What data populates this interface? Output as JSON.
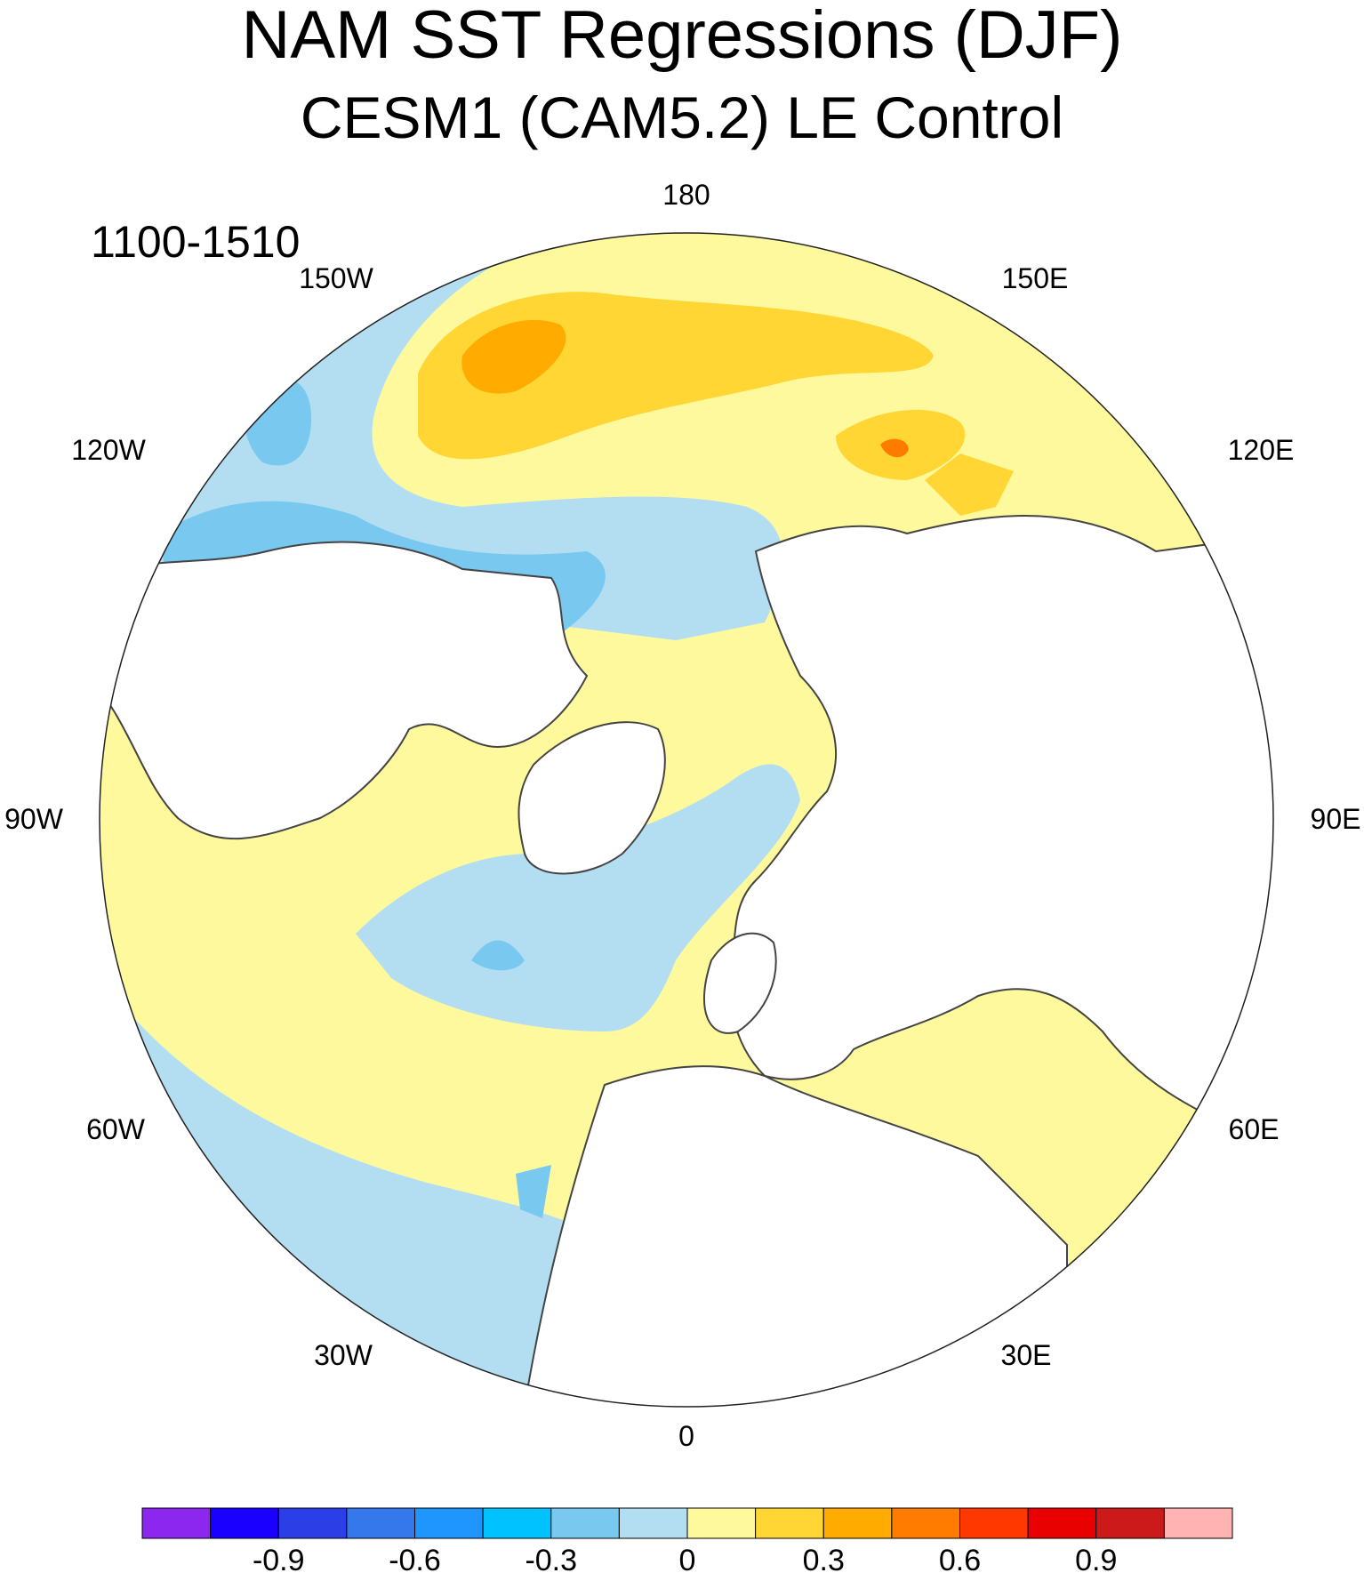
{
  "title": "NAM SST Regressions (DJF)",
  "subtitle": "CESM1 (CAM5.2) LE Control",
  "period": "1100-1510",
  "longitude_labels": {
    "lon_180": "180",
    "lon_150e": "150E",
    "lon_120e": "120E",
    "lon_90e": "90E",
    "lon_60e": "60E",
    "lon_30e": "30E",
    "lon_0": "0",
    "lon_30w": "30W",
    "lon_60w": "60W",
    "lon_90w": "90W",
    "lon_120w": "120W",
    "lon_150w": "150W"
  },
  "colorbar": {
    "colors": [
      "#8c27f0",
      "#1a00ff",
      "#2c3fe6",
      "#3478ec",
      "#1e96fd",
      "#00c2ff",
      "#78c8f0",
      "#b3def2",
      "#fff99e",
      "#ffd634",
      "#ffab00",
      "#ff7c00",
      "#ff3800",
      "#e90000",
      "#cc1a1a",
      "#ffb3b3"
    ],
    "tick_labels": [
      "-0.9",
      "-0.6",
      "-0.3",
      "0",
      "0.3",
      "0.6",
      "0.9"
    ]
  },
  "map_colors": {
    "ocean_neg_weak": "#b3def2",
    "ocean_neg_mid": "#78c8f0",
    "ocean_neg_strong": "#00c2ff",
    "ocean_pos_weak": "#fff99e",
    "ocean_pos_mid": "#ffd634",
    "ocean_pos_strong": "#ffab00",
    "ocean_pos_stronger": "#ff7c00",
    "ocean_pos_max": "#e90000",
    "land": "#ffffff",
    "coast": "#444444"
  }
}
